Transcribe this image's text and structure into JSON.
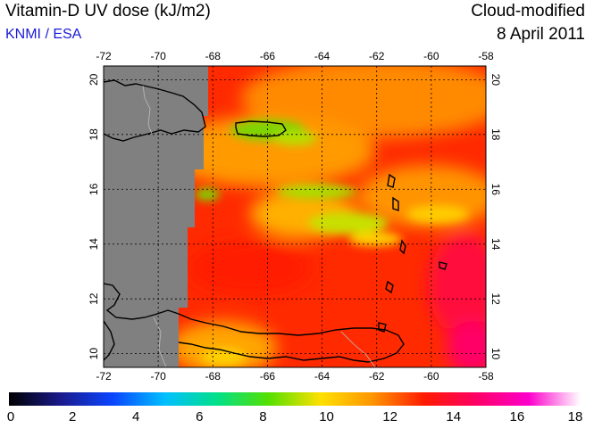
{
  "title": "Vitamin-D UV dose (kJ/m2)",
  "credit": "KNMI / ESA",
  "mode": "Cloud-modified",
  "date": "8 April 2011",
  "lon_ticks": [
    "-72",
    "-70",
    "-68",
    "-66",
    "-64",
    "-62",
    "-60",
    "-58"
  ],
  "lat_ticks": [
    "10",
    "12",
    "14",
    "16",
    "18",
    "20"
  ],
  "colorbar": {
    "ticks": [
      "0",
      "2",
      "4",
      "6",
      "8",
      "10",
      "12",
      "14",
      "16",
      "18"
    ],
    "range": [
      0,
      18
    ],
    "stops": [
      "#000000",
      "#1a1a8c",
      "#0a46ff",
      "#00bfff",
      "#00e08a",
      "#55e000",
      "#ffe000",
      "#ff9500",
      "#ff1a00",
      "#ff0066",
      "#ff00cc",
      "#ffffff"
    ]
  },
  "colors": {
    "land_no_data": "#808080",
    "coastline": "#000000",
    "grid": "#000000"
  }
}
